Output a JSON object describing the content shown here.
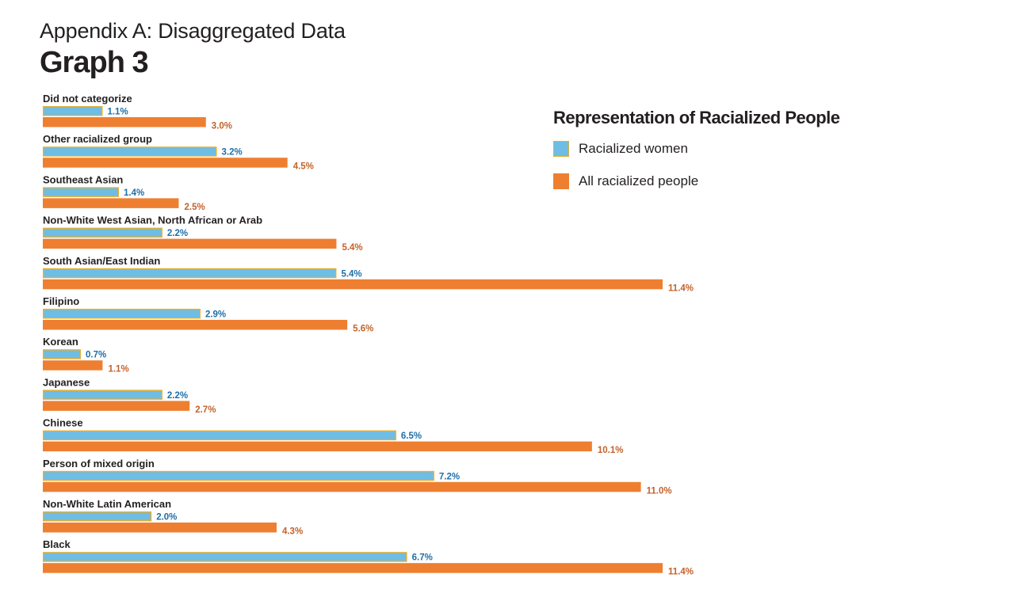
{
  "header": {
    "appendix_title": "Appendix A: Disaggregated Data",
    "graph_title": "Graph 3"
  },
  "legend": {
    "title": "Representation of Racialized People",
    "items": [
      {
        "label": "Racialized women",
        "color": "#6dbde5",
        "border": "#e3ae36"
      },
      {
        "label": "All racialized people",
        "color": "#ee7f31"
      }
    ]
  },
  "chart_data": {
    "type": "bar",
    "orientation": "horizontal",
    "title": "Representation of Racialized People",
    "categories": [
      "Did not categorize",
      "Other racialized group",
      "Southeast Asian",
      "Non-White West Asian, North African or Arab",
      "South Asian/East Indian",
      "Filipino",
      "Korean",
      "Japanese",
      "Chinese",
      "Person of mixed origin",
      "Non-White Latin American",
      "Black"
    ],
    "series": [
      {
        "name": "Racialized women",
        "color": "#6dbde5",
        "values": [
          1.1,
          3.2,
          1.4,
          2.2,
          5.4,
          2.9,
          0.7,
          2.2,
          6.5,
          7.2,
          2.0,
          6.7
        ],
        "labels": [
          "1.1%",
          "3.2%",
          "1.4%",
          "2.2%",
          "5.4%",
          "2.9%",
          "0.7%",
          "2.2%",
          "6.5%",
          "7.2%",
          "2.0%",
          "6.7%"
        ]
      },
      {
        "name": "All racialized people",
        "color": "#ee7f31",
        "values": [
          3.0,
          4.5,
          2.5,
          5.4,
          11.4,
          5.6,
          1.1,
          2.7,
          10.1,
          11.0,
          4.3,
          11.4
        ],
        "labels": [
          "3.0%",
          "4.5%",
          "2.5%",
          "5.4%",
          "11.4%",
          "5.6%",
          "1.1%",
          "2.7%",
          "10.1%",
          "11.0%",
          "4.3%",
          "11.4%"
        ]
      }
    ],
    "xlim": [
      0,
      11.4
    ],
    "grid": false,
    "legend_position": "top-right"
  }
}
